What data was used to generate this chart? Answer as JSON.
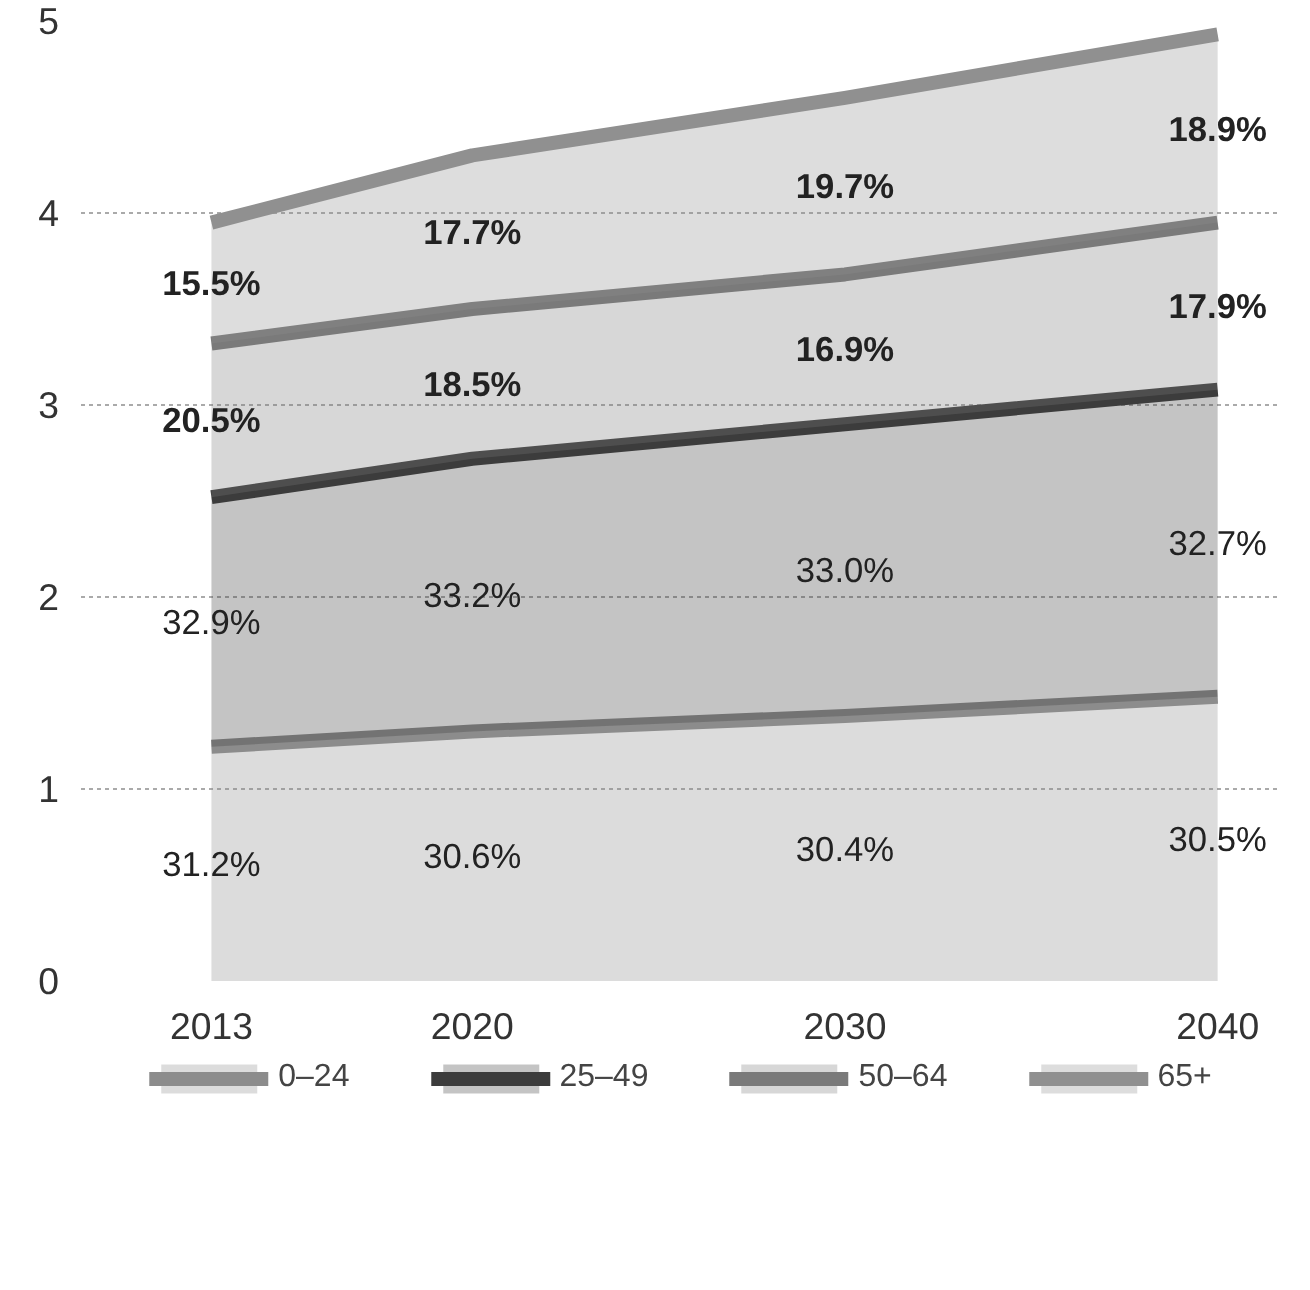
{
  "chart_data": {
    "type": "area",
    "stacked": true,
    "x": [
      2013,
      2020,
      2030,
      2040
    ],
    "xlim": [
      2009.5,
      2041.7
    ],
    "xticks": [
      2013,
      2020,
      2030,
      2040
    ],
    "ylim": [
      0,
      5
    ],
    "yticks": [
      0,
      1,
      2,
      3,
      4,
      5
    ],
    "grid": "y",
    "legend": "bottom",
    "series": [
      {
        "name": "0–24",
        "color": "#8c8c8c",
        "values": [
          1.22,
          1.3,
          1.38,
          1.48
        ]
      },
      {
        "name": "25–49",
        "color": "#3c3c3c",
        "values": [
          1.3,
          1.42,
          1.52,
          1.6
        ]
      },
      {
        "name": "50–64",
        "color": "#7a7a7a",
        "values": [
          0.8,
          0.78,
          0.78,
          0.87
        ]
      },
      {
        "name": "65+",
        "color": "#909090",
        "values": [
          0.63,
          0.8,
          0.92,
          0.98
        ]
      }
    ],
    "annotations": [
      "31.2%",
      "30.6%",
      "30.4%",
      "30.5%",
      "32.9%",
      "33.2%",
      "33.0%",
      "32.7%",
      "20.5%",
      "18.5%",
      "16.9%",
      "17.9%",
      "15.5%",
      "17.7%",
      "19.7%",
      "18.9%"
    ]
  }
}
